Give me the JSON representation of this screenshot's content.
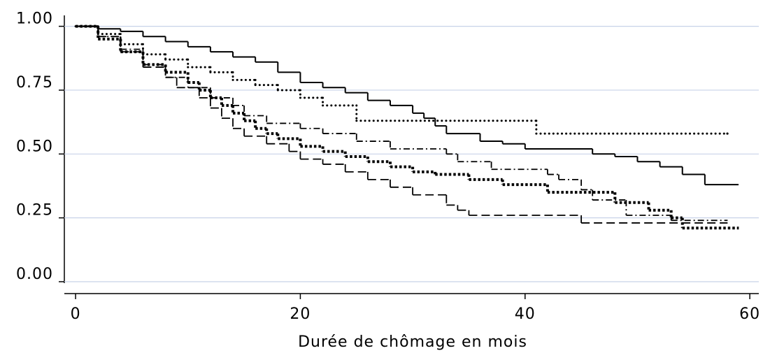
{
  "chart_data": {
    "type": "step",
    "x_label": "Durée de chômage en mois",
    "xlim": [
      -1,
      60.8
    ],
    "ylim": [
      0,
      1.04
    ],
    "xticks": [
      0,
      20,
      40,
      60
    ],
    "yticks": [
      {
        "value": 0,
        "label": "0.00"
      },
      {
        "value": 0.25,
        "label": "0.25"
      },
      {
        "value": 0.5,
        "label": "0.50"
      },
      {
        "value": 0.75,
        "label": "0.75"
      },
      {
        "value": 1,
        "label": "1.00"
      }
    ],
    "grid": true,
    "grid_color": "#c8d2e8",
    "series": [
      {
        "color": "#000000",
        "line_style": "solid",
        "x": [
          0,
          2,
          4,
          6,
          8,
          10,
          12,
          14,
          16,
          18,
          20,
          22,
          24,
          26,
          28,
          30,
          31,
          32,
          33,
          36,
          38,
          40,
          46,
          48,
          50,
          52,
          54,
          56,
          59
        ],
        "values": [
          1,
          0.99,
          0.98,
          0.96,
          0.94,
          0.92,
          0.9,
          0.88,
          0.86,
          0.82,
          0.78,
          0.76,
          0.74,
          0.71,
          0.69,
          0.66,
          0.64,
          0.61,
          0.58,
          0.55,
          0.54,
          0.52,
          0.5,
          0.49,
          0.47,
          0.45,
          0.42,
          0.38,
          0.38
        ]
      },
      {
        "color": "#000000",
        "line_style": "dotted",
        "x": [
          0,
          2,
          4,
          6,
          8,
          10,
          12,
          14,
          16,
          18,
          20,
          22,
          25,
          41,
          58
        ],
        "values": [
          1,
          0.97,
          0.93,
          0.89,
          0.87,
          0.84,
          0.82,
          0.79,
          0.77,
          0.75,
          0.72,
          0.69,
          0.63,
          0.58,
          0.58
        ]
      },
      {
        "color": "#000000",
        "line_style": "dashdot",
        "x": [
          0,
          2,
          4,
          6,
          8,
          10,
          12,
          14,
          15,
          17,
          20,
          22,
          25,
          28,
          33,
          34,
          37,
          42,
          43,
          45,
          46,
          49,
          53,
          58
        ],
        "values": [
          1,
          0.96,
          0.91,
          0.85,
          0.8,
          0.76,
          0.72,
          0.69,
          0.65,
          0.62,
          0.6,
          0.58,
          0.55,
          0.52,
          0.5,
          0.47,
          0.44,
          0.42,
          0.4,
          0.36,
          0.32,
          0.26,
          0.24,
          0.24
        ]
      },
      {
        "color": "#000000",
        "line_style": "dotted-thick",
        "x": [
          0,
          2,
          4,
          6,
          8,
          10,
          11,
          12,
          13,
          14,
          15,
          16,
          17,
          18,
          20,
          22,
          24,
          26,
          28,
          30,
          32,
          35,
          38,
          42,
          48,
          51,
          53,
          54,
          59
        ],
        "values": [
          1,
          0.95,
          0.9,
          0.85,
          0.82,
          0.78,
          0.75,
          0.72,
          0.69,
          0.66,
          0.63,
          0.6,
          0.58,
          0.56,
          0.53,
          0.51,
          0.49,
          0.47,
          0.45,
          0.43,
          0.42,
          0.4,
          0.38,
          0.35,
          0.31,
          0.28,
          0.25,
          0.21,
          0.21
        ]
      },
      {
        "color": "#000000",
        "line_style": "dashed",
        "x": [
          0,
          2,
          4,
          6,
          8,
          9,
          11,
          12,
          13,
          14,
          15,
          17,
          19,
          20,
          22,
          24,
          26,
          28,
          30,
          33,
          34,
          35,
          45,
          58
        ],
        "values": [
          1,
          0.96,
          0.9,
          0.84,
          0.8,
          0.76,
          0.72,
          0.68,
          0.64,
          0.6,
          0.57,
          0.54,
          0.51,
          0.48,
          0.46,
          0.43,
          0.4,
          0.37,
          0.34,
          0.3,
          0.28,
          0.26,
          0.23,
          0.23
        ]
      }
    ]
  }
}
